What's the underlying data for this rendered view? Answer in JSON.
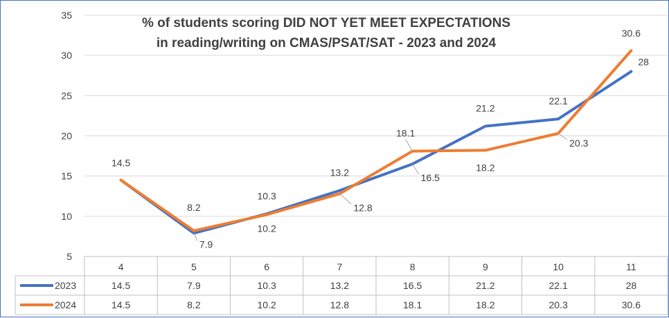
{
  "chart_data": {
    "type": "line",
    "title": "% of students scoring DID NOT YET MEET EXPECTATIONS",
    "subtitle": "in reading/writing on CMAS/PSAT/SAT - 2023 and 2024",
    "categories": [
      "4",
      "5",
      "6",
      "7",
      "8",
      "9",
      "10",
      "11"
    ],
    "ylim": [
      5,
      35
    ],
    "yticks": [
      5,
      10,
      15,
      20,
      25,
      30,
      35
    ],
    "grid": true,
    "legend": "data-table",
    "data_table": true,
    "series": [
      {
        "name": "2023",
        "color": "#4472c4",
        "values": [
          14.5,
          7.9,
          10.3,
          13.2,
          16.5,
          21.2,
          22.1,
          28
        ],
        "labels": [
          "",
          "7.9",
          "10.3",
          "13.2",
          "16.5",
          "21.2",
          "22.1",
          "28"
        ]
      },
      {
        "name": "2024",
        "color": "#ed7d31",
        "values": [
          14.5,
          8.2,
          10.2,
          12.8,
          18.1,
          18.2,
          20.3,
          30.6
        ],
        "labels": [
          "14.5",
          "8.2",
          "10.2",
          "12.8",
          "18.1",
          "18.2",
          "20.3",
          "30.6"
        ]
      }
    ]
  }
}
